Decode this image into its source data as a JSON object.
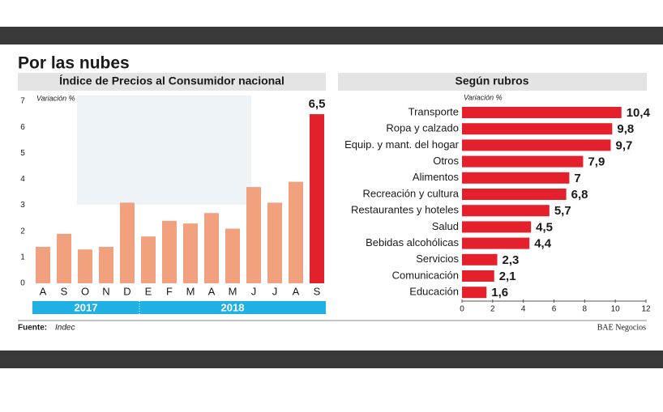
{
  "title": "Por las nubes",
  "source_label": "Fuente:",
  "source": "Indec",
  "credit": "BAE Negocios",
  "chart_data": [
    {
      "type": "bar",
      "title": "Índice de Precios al Consumidor nacional",
      "y_label": "Variación %",
      "categories": [
        "A",
        "S",
        "O",
        "N",
        "D",
        "E",
        "F",
        "M",
        "A",
        "M",
        "J",
        "J",
        "A",
        "S"
      ],
      "values": [
        1.4,
        1.9,
        1.3,
        1.4,
        3.1,
        1.8,
        2.4,
        2.3,
        2.7,
        2.1,
        3.7,
        3.1,
        3.9,
        6.5
      ],
      "value_labels": [
        null,
        null,
        null,
        null,
        null,
        null,
        null,
        null,
        null,
        null,
        null,
        null,
        null,
        "6,5"
      ],
      "colors": [
        "#f2a17e",
        "#f2a17e",
        "#f2a17e",
        "#f2a17e",
        "#f2a17e",
        "#f2a17e",
        "#f2a17e",
        "#f2a17e",
        "#f2a17e",
        "#f2a17e",
        "#f2a17e",
        "#f2a17e",
        "#f2a17e",
        "#e3202b"
      ],
      "year_groups": [
        "2017",
        "2018"
      ],
      "ylim": [
        0,
        7
      ],
      "yticks": [
        0,
        1,
        2,
        3,
        4,
        5,
        6,
        7
      ]
    },
    {
      "type": "barh",
      "title": "Según rubros",
      "x_label": "Variación %",
      "categories": [
        "Transporte",
        "Ropa y calzado",
        "Equip. y mant. del hogar",
        "Otros",
        "Alimentos",
        "Recreación y cultura",
        "Restaurantes y hoteles",
        "Salud",
        "Bebidas alcohólicas",
        "Servicios",
        "Comunicación",
        "Educación"
      ],
      "values": [
        10.4,
        9.8,
        9.7,
        7.9,
        7,
        6.8,
        5.7,
        4.5,
        4.4,
        2.3,
        2.1,
        1.6
      ],
      "value_labels": [
        "10,4",
        "9,8",
        "9,7",
        "7,9",
        "7",
        "6,8",
        "5,7",
        "4,5",
        "4,4",
        "2,3",
        "2,1",
        "1,6"
      ],
      "color": "#e3202b",
      "xlim": [
        0,
        12
      ],
      "xticks": [
        0,
        2,
        4,
        6,
        8,
        10,
        12
      ]
    }
  ]
}
